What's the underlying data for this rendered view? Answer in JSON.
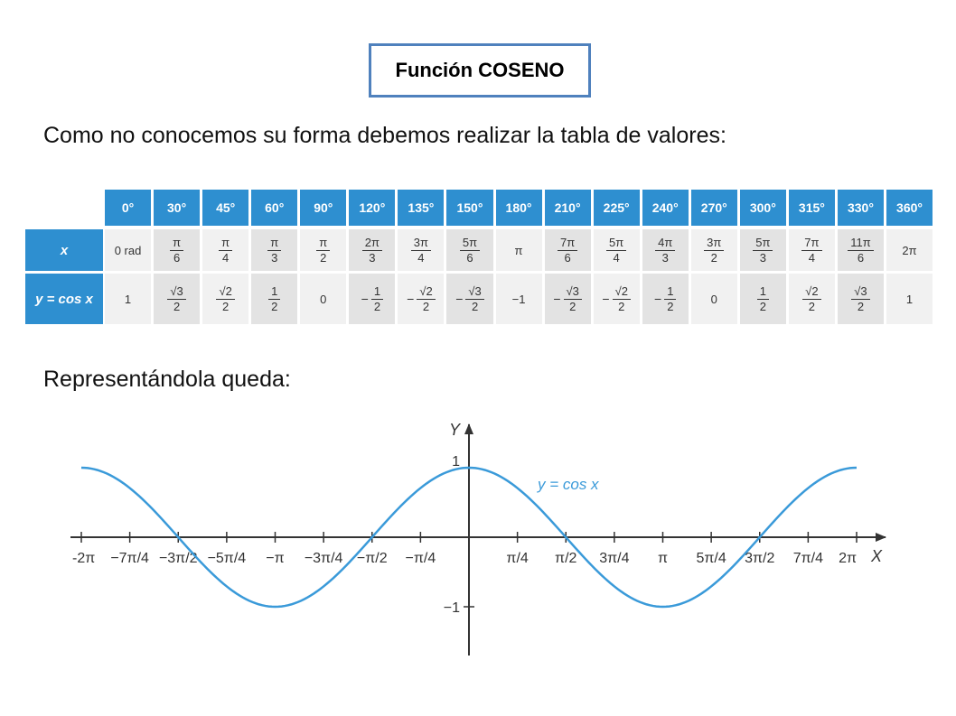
{
  "title": "Función COSENO",
  "intro": "Como no conocemos su forma debemos realizar la tabla de valores:",
  "caption": "Representándola queda:",
  "table": {
    "x_label": "x",
    "y_label": "y = cos x",
    "degrees": [
      "0°",
      "30°",
      "45°",
      "60°",
      "90°",
      "120°",
      "135°",
      "150°",
      "180°",
      "210°",
      "225°",
      "240°",
      "270°",
      "300°",
      "315°",
      "330°",
      "360°"
    ],
    "x": [
      {
        "text": "0 rad"
      },
      {
        "num": "π",
        "den": "6"
      },
      {
        "num": "π",
        "den": "4"
      },
      {
        "num": "π",
        "den": "3"
      },
      {
        "num": "π",
        "den": "2"
      },
      {
        "num": "2π",
        "den": "3"
      },
      {
        "num": "3π",
        "den": "4"
      },
      {
        "num": "5π",
        "den": "6"
      },
      {
        "text": "π"
      },
      {
        "num": "7π",
        "den": "6"
      },
      {
        "num": "5π",
        "den": "4"
      },
      {
        "num": "4π",
        "den": "3"
      },
      {
        "num": "3π",
        "den": "2"
      },
      {
        "num": "5π",
        "den": "3"
      },
      {
        "num": "7π",
        "den": "4"
      },
      {
        "num": "11π",
        "den": "6"
      },
      {
        "text": "2π"
      }
    ],
    "y": [
      {
        "text": "1"
      },
      {
        "num": "√3",
        "den": "2"
      },
      {
        "num": "√2",
        "den": "2"
      },
      {
        "num": "1",
        "den": "2"
      },
      {
        "text": "0"
      },
      {
        "sign": "−",
        "num": "1",
        "den": "2"
      },
      {
        "sign": "−",
        "num": "√2",
        "den": "2"
      },
      {
        "sign": "−",
        "num": "√3",
        "den": "2"
      },
      {
        "text": "−1"
      },
      {
        "sign": "−",
        "num": "√3",
        "den": "2"
      },
      {
        "sign": "−",
        "num": "√2",
        "den": "2"
      },
      {
        "sign": "−",
        "num": "1",
        "den": "2"
      },
      {
        "text": "0"
      },
      {
        "num": "1",
        "den": "2"
      },
      {
        "num": "√2",
        "den": "2"
      },
      {
        "num": "√3",
        "den": "2"
      },
      {
        "text": "1"
      }
    ]
  },
  "chart_data": {
    "type": "line",
    "function": "y = cos x",
    "series_label": "y = cos x",
    "xlabel": "X",
    "ylabel": "Y",
    "xlim": [
      -6.2832,
      6.2832
    ],
    "ylim": [
      -1,
      1
    ],
    "x_ticks": [
      {
        "value": -6.2832,
        "label": "-2π"
      },
      {
        "value": -5.4978,
        "label": "−7π/4"
      },
      {
        "value": -4.7124,
        "label": "−3π/2"
      },
      {
        "value": -3.927,
        "label": "−5π/4"
      },
      {
        "value": -3.1416,
        "label": "−π"
      },
      {
        "value": -2.3562,
        "label": "−3π/4"
      },
      {
        "value": -1.5708,
        "label": "−π/2"
      },
      {
        "value": -0.7854,
        "label": "−π/4"
      },
      {
        "value": 0.7854,
        "label": "π/4"
      },
      {
        "value": 1.5708,
        "label": "π/2"
      },
      {
        "value": 2.3562,
        "label": "3π/4"
      },
      {
        "value": 3.1416,
        "label": "π"
      },
      {
        "value": 3.927,
        "label": "5π/4"
      },
      {
        "value": 4.7124,
        "label": "3π/2"
      },
      {
        "value": 5.4978,
        "label": "7π/4"
      },
      {
        "value": 6.2832,
        "label": "2π"
      }
    ],
    "y_ticks": [
      {
        "value": 1,
        "label": "1"
      },
      {
        "value": -1,
        "label": "−1"
      }
    ],
    "colors": {
      "curve": "#3a9ad9",
      "axes": "#333333"
    }
  }
}
